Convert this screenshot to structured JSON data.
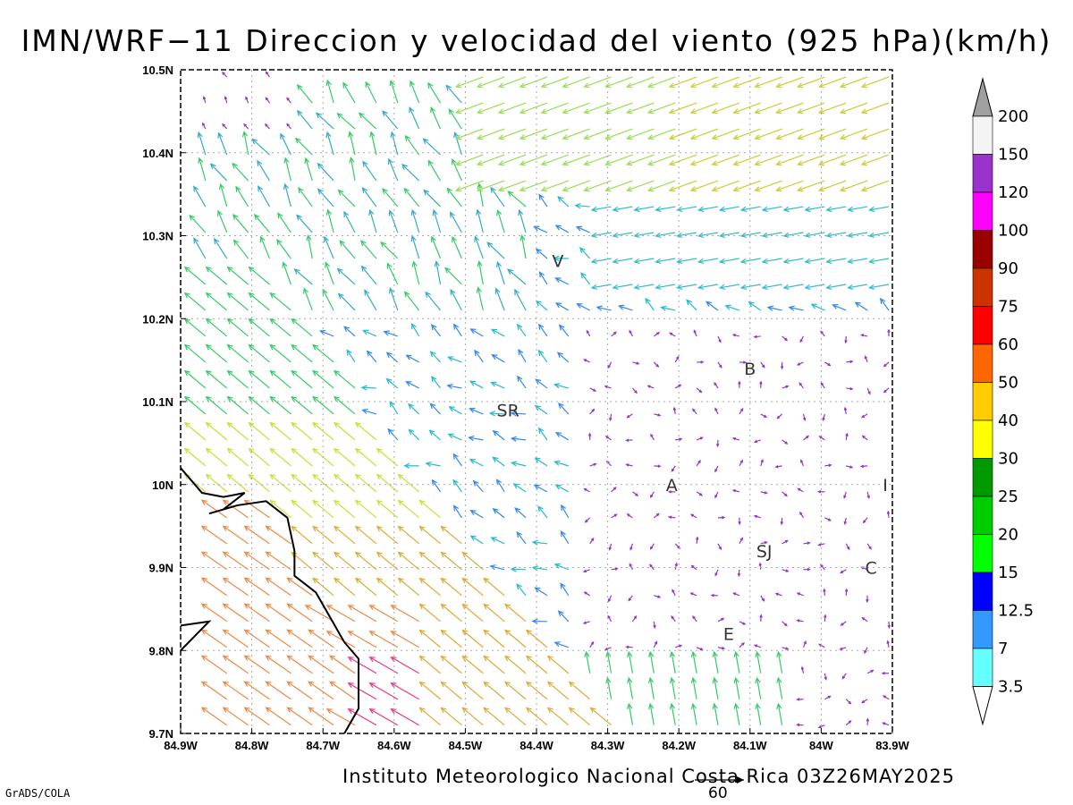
{
  "title": "IMN/WRF−11 Direccion y velocidad del viento (925 hPa)(km/h)",
  "credit": "Instituto Meteorologico Nacional Costa Rica 03Z26MAY2025",
  "software": "GrADS/COLA",
  "reference_vector": {
    "value": "60"
  },
  "map": {
    "lon_ticks": [
      "84.9W",
      "84.8W",
      "84.7W",
      "84.6W",
      "84.5W",
      "84.4W",
      "84.3W",
      "84.2W",
      "84.1W",
      "84W",
      "83.9W"
    ],
    "lat_ticks": [
      "9.7N",
      "9.8N",
      "9.9N",
      "10N",
      "10.1N",
      "10.2N",
      "10.3N",
      "10.4N",
      "10.5N"
    ],
    "lon_range": [
      -84.9,
      -83.9
    ],
    "lat_range": [
      9.7,
      10.5
    ],
    "cities": [
      {
        "label": "V",
        "lon": -84.37,
        "lat": 10.27
      },
      {
        "label": "B",
        "lon": -84.1,
        "lat": 10.14
      },
      {
        "label": "SR",
        "lon": -84.44,
        "lat": 10.09
      },
      {
        "label": "A",
        "lon": -84.21,
        "lat": 10.0
      },
      {
        "label": "I",
        "lon": -83.91,
        "lat": 10.0
      },
      {
        "label": "SJ",
        "lon": -84.08,
        "lat": 9.92
      },
      {
        "label": "C",
        "lon": -83.93,
        "lat": 9.9
      },
      {
        "label": "E",
        "lon": -84.13,
        "lat": 9.82
      }
    ],
    "coastline": [
      [
        -84.9,
        10.02
      ],
      [
        -84.87,
        9.99
      ],
      [
        -84.84,
        9.985
      ],
      [
        -84.81,
        9.99
      ],
      [
        -84.84,
        9.97
      ],
      [
        -84.86,
        9.965
      ],
      [
        -84.82,
        9.975
      ],
      [
        -84.78,
        9.98
      ],
      [
        -84.75,
        9.96
      ],
      [
        -84.74,
        9.92
      ],
      [
        -84.74,
        9.89
      ],
      [
        -84.71,
        9.87
      ],
      [
        -84.69,
        9.84
      ],
      [
        -84.67,
        9.81
      ],
      [
        -84.65,
        9.79
      ],
      [
        -84.65,
        9.76
      ],
      [
        -84.65,
        9.73
      ],
      [
        -84.67,
        9.7
      ]
    ],
    "coastline_w": [
      [
        -84.9,
        9.83
      ],
      [
        -84.86,
        9.835
      ],
      [
        -84.9,
        9.8
      ]
    ]
  },
  "colorbar": {
    "labels": [
      "200",
      "150",
      "120",
      "100",
      "90",
      "75",
      "60",
      "50",
      "40",
      "30",
      "25",
      "20",
      "15",
      "12.5",
      "7",
      "3.5"
    ],
    "colors": [
      "#a0a0a0",
      "#f4f4f4",
      "#9933cc",
      "#ff00ff",
      "#990000",
      "#cc3300",
      "#ff0000",
      "#ff6600",
      "#ffcc00",
      "#ffff00",
      "#009900",
      "#00cc00",
      "#00ff00",
      "#0000ff",
      "#3399ff",
      "#66ffff",
      "#ffffff"
    ]
  },
  "wind_regions": [
    {
      "name": "southwest-coast",
      "color": "#ee7733",
      "dir_deg": 135,
      "speed": "50-60"
    },
    {
      "name": "lowland-northwest",
      "color": "#33cc33",
      "dir_deg": 135,
      "speed": "20-30"
    },
    {
      "name": "caribbean-north",
      "color": "#aadd33",
      "dir_deg": 250,
      "speed": "25-35"
    },
    {
      "name": "central-valley",
      "color": "#9933cc",
      "dir_deg": "variable",
      "speed": "<3.5"
    }
  ]
}
